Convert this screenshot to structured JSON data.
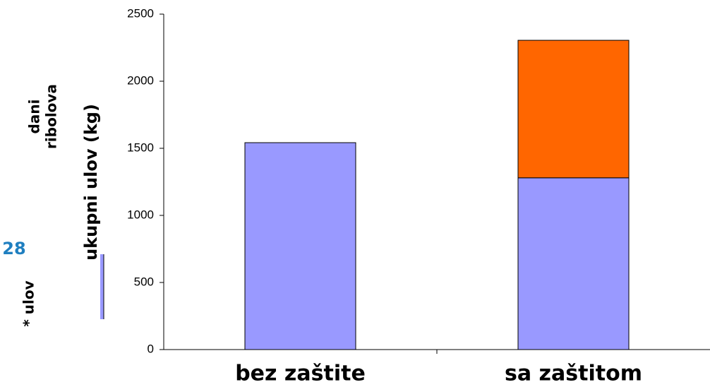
{
  "chart_data": {
    "type": "stacked_bar",
    "categories": [
      "bez zaštite",
      "sa zaštitom"
    ],
    "series": [
      {
        "color": "#9999ff",
        "values": [
          1542,
          1280
        ]
      },
      {
        "color": "#ff6600",
        "values": [
          null,
          1025
        ]
      }
    ],
    "ylabel": "ukupni ulov (kg)",
    "ylim": [
      0,
      2500
    ],
    "yticks": [
      0,
      500,
      1000,
      1500,
      2000,
      2500
    ],
    "annotations": [
      "dani",
      "ribolova",
      "28",
      "* ulov"
    ]
  }
}
